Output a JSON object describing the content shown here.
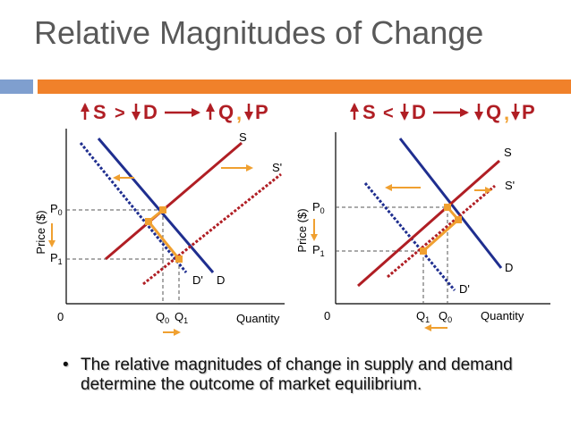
{
  "title": "Relative Magnitudes of Change",
  "bullet": {
    "marker": "•",
    "text": "The relative magnitudes of change in supply and demand determine the outcome of market equilibrium."
  },
  "left_panel": {
    "formula": {
      "a": "S",
      "op": ">",
      "b": "D",
      "c": "Q",
      "sep": ",",
      "d": "P"
    },
    "ylabel": "Price ($)",
    "xlabel": "Quantity",
    "origin": "0",
    "labels": {
      "S": "S",
      "S2": "S'",
      "D": "D",
      "D2": "D'"
    },
    "price_labels": {
      "p0_main": "P",
      "p0_sub": "0",
      "p1_main": "P",
      "p1_sub": "1"
    },
    "qty_labels": {
      "q0_main": "Q",
      "q0_sub": "0",
      "q1_main": "Q",
      "q1_sub": "1"
    }
  },
  "right_panel": {
    "formula": {
      "a": "S",
      "op": "<",
      "b": "D",
      "c": "Q",
      "sep": ",",
      "d": "P"
    },
    "ylabel": "Price ($)",
    "xlabel": "Quantity",
    "origin": "0",
    "labels": {
      "S": "S",
      "S2": "S'",
      "D": "D",
      "D2": "D'"
    },
    "price_labels": {
      "p0_main": "P",
      "p0_sub": "0",
      "p1_main": "P",
      "p1_sub": "1"
    },
    "qty_labels": {
      "q1_main": "Q",
      "q1_sub": "1",
      "q0_main": "Q",
      "q0_sub": "0"
    }
  },
  "colors": {
    "supply": "#b01e24",
    "demand": "#1f2e8f",
    "arrow": "#f0a030",
    "formula": "#b01e24",
    "axis": "#000000"
  }
}
